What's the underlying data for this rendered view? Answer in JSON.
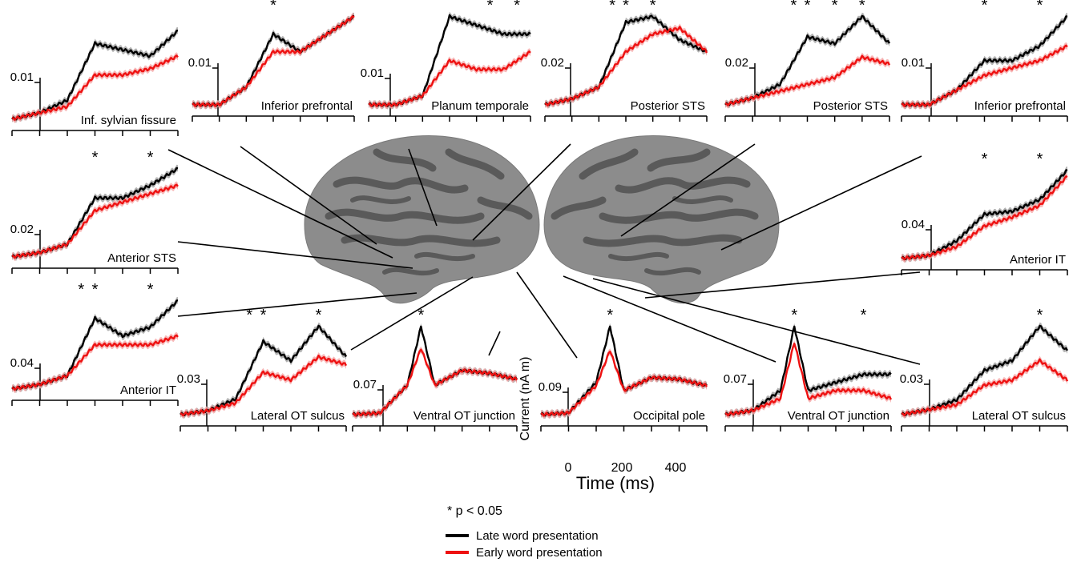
{
  "figure": {
    "axis_label": "Current (nA m)",
    "time_label": "Time (ms)",
    "time_ticks": [
      "0",
      "200",
      "400"
    ],
    "significance_note": "* p < 0.05",
    "legend": [
      {
        "label": "Late word presentation",
        "color": "#000000"
      },
      {
        "label": "Early word presentation",
        "color": "#ee1111"
      }
    ],
    "colors": {
      "late": "#000000",
      "early": "#ee1111",
      "late_band": "#9a9a9a",
      "early_band": "#f4a0a0",
      "brain_light": "#8c8c8c",
      "brain_dark": "#5a5a5a"
    }
  },
  "chart_data": [
    {
      "type": "line",
      "title": "Inf. sylvian fissure",
      "hemisphere": "left",
      "ytick": "0.01",
      "sig_times": [],
      "x": [
        -100,
        0,
        100,
        200,
        300,
        400,
        500
      ],
      "series": [
        {
          "name": "Late word presentation",
          "values": [
            0.004,
            0.005,
            0.007,
            0.016,
            0.015,
            0.014,
            0.018
          ]
        },
        {
          "name": "Early word presentation",
          "values": [
            0.004,
            0.005,
            0.006,
            0.011,
            0.011,
            0.012,
            0.014
          ]
        }
      ]
    },
    {
      "type": "line",
      "title": "Inferior prefrontal",
      "hemisphere": "left",
      "ytick": "0.01",
      "sig_times": [
        200
      ],
      "x": [
        -100,
        0,
        100,
        200,
        300,
        400,
        500
      ],
      "series": [
        {
          "name": "Late word presentation",
          "values": [
            0.004,
            0.004,
            0.005,
            0.008,
            0.007,
            0.008,
            0.009
          ]
        },
        {
          "name": "Early word presentation",
          "values": [
            0.004,
            0.004,
            0.005,
            0.007,
            0.007,
            0.008,
            0.009
          ]
        }
      ]
    },
    {
      "type": "line",
      "title": "Planum temporale",
      "hemisphere": "left",
      "ytick": "0.01",
      "sig_times": [
        350,
        450
      ],
      "x": [
        -100,
        0,
        100,
        200,
        300,
        400,
        500
      ],
      "series": [
        {
          "name": "Late word presentation",
          "values": [
            0.004,
            0.004,
            0.005,
            0.014,
            0.013,
            0.012,
            0.012
          ]
        },
        {
          "name": "Early word presentation",
          "values": [
            0.004,
            0.004,
            0.005,
            0.009,
            0.008,
            0.008,
            0.01
          ]
        }
      ]
    },
    {
      "type": "line",
      "title": "Posterior STS",
      "hemisphere": "left",
      "ytick": "0.02",
      "sig_times": [
        150,
        200,
        300
      ],
      "x": [
        -100,
        0,
        100,
        200,
        300,
        400,
        500
      ],
      "series": [
        {
          "name": "Late word presentation",
          "values": [
            0.01,
            0.011,
            0.013,
            0.024,
            0.025,
            0.021,
            0.019
          ]
        },
        {
          "name": "Early word presentation",
          "values": [
            0.01,
            0.011,
            0.013,
            0.019,
            0.022,
            0.023,
            0.019
          ]
        }
      ]
    },
    {
      "type": "line",
      "title": "Posterior STS",
      "hemisphere": "right",
      "ytick": "0.02",
      "sig_times": [
        150,
        200,
        300,
        400
      ],
      "x": [
        -100,
        0,
        100,
        200,
        300,
        400,
        500
      ],
      "series": [
        {
          "name": "Late word presentation",
          "values": [
            0.01,
            0.011,
            0.013,
            0.02,
            0.019,
            0.023,
            0.019
          ]
        },
        {
          "name": "Early word presentation",
          "values": [
            0.01,
            0.011,
            0.012,
            0.013,
            0.014,
            0.017,
            0.016
          ]
        }
      ]
    },
    {
      "type": "line",
      "title": "Inferior prefrontal",
      "hemisphere": "right",
      "ytick": "0.01",
      "sig_times": [
        200,
        400
      ],
      "x": [
        -100,
        0,
        100,
        200,
        300,
        400,
        500
      ],
      "series": [
        {
          "name": "Late word presentation",
          "values": [
            0.004,
            0.004,
            0.006,
            0.01,
            0.01,
            0.012,
            0.016
          ]
        },
        {
          "name": "Early word presentation",
          "values": [
            0.004,
            0.004,
            0.006,
            0.008,
            0.009,
            0.01,
            0.012
          ]
        }
      ]
    },
    {
      "type": "line",
      "title": "Anterior STS",
      "hemisphere": "left",
      "ytick": "0.02",
      "sig_times": [
        200,
        400
      ],
      "x": [
        -100,
        0,
        100,
        200,
        300,
        400,
        500
      ],
      "series": [
        {
          "name": "Late word presentation",
          "values": [
            0.019,
            0.02,
            0.022,
            0.033,
            0.033,
            0.036,
            0.04
          ]
        },
        {
          "name": "Early word presentation",
          "values": [
            0.019,
            0.02,
            0.022,
            0.03,
            0.032,
            0.034,
            0.036
          ]
        }
      ]
    },
    {
      "type": "line",
      "title": "Anterior IT",
      "hemisphere": "right",
      "ytick": "0.04",
      "sig_times": [
        200,
        400
      ],
      "x": [
        -100,
        0,
        100,
        200,
        300,
        400,
        500
      ],
      "series": [
        {
          "name": "Late word presentation",
          "values": [
            0.034,
            0.035,
            0.04,
            0.049,
            0.05,
            0.054,
            0.064
          ]
        },
        {
          "name": "Early word presentation",
          "values": [
            0.034,
            0.035,
            0.038,
            0.045,
            0.048,
            0.052,
            0.062
          ]
        }
      ]
    },
    {
      "type": "line",
      "title": "Anterior IT",
      "hemisphere": "left",
      "ytick": "0.04",
      "sig_times": [
        150,
        200,
        400
      ],
      "x": [
        -100,
        0,
        100,
        200,
        300,
        400,
        500
      ],
      "series": [
        {
          "name": "Late word presentation",
          "values": [
            0.038,
            0.039,
            0.041,
            0.054,
            0.05,
            0.052,
            0.058
          ]
        },
        {
          "name": "Early word presentation",
          "values": [
            0.038,
            0.039,
            0.041,
            0.048,
            0.048,
            0.048,
            0.05
          ]
        }
      ]
    },
    {
      "type": "line",
      "title": "Lateral OT sulcus",
      "hemisphere": "left",
      "ytick": "0.03",
      "sig_times": [
        150,
        200,
        400
      ],
      "x": [
        -100,
        0,
        100,
        200,
        300,
        400,
        500
      ],
      "series": [
        {
          "name": "Late word presentation",
          "values": [
            0.019,
            0.02,
            0.023,
            0.038,
            0.033,
            0.042,
            0.034
          ]
        },
        {
          "name": "Early word presentation",
          "values": [
            0.019,
            0.02,
            0.022,
            0.03,
            0.028,
            0.034,
            0.032
          ]
        }
      ]
    },
    {
      "type": "line",
      "title": "Ventral OT junction",
      "hemisphere": "left",
      "ytick": "0.07",
      "sig_times": [
        150
      ],
      "x": [
        -100,
        0,
        100,
        150,
        200,
        300,
        400,
        500
      ],
      "series": [
        {
          "name": "Late word presentation",
          "values": [
            0.04,
            0.041,
            0.06,
            0.1,
            0.06,
            0.07,
            0.068,
            0.064
          ]
        },
        {
          "name": "Early word presentation",
          "values": [
            0.04,
            0.041,
            0.06,
            0.085,
            0.06,
            0.07,
            0.068,
            0.064
          ]
        }
      ]
    },
    {
      "type": "line",
      "title": "Occipital pole",
      "hemisphere": "left",
      "ytick": "0.09",
      "sig_times": [
        150
      ],
      "x": [
        -100,
        0,
        100,
        150,
        200,
        300,
        400,
        500
      ],
      "series": [
        {
          "name": "Late word presentation",
          "values": [
            0.07,
            0.071,
            0.09,
            0.125,
            0.085,
            0.093,
            0.092,
            0.088
          ]
        },
        {
          "name": "Early word presentation",
          "values": [
            0.07,
            0.071,
            0.088,
            0.11,
            0.085,
            0.093,
            0.092,
            0.088
          ]
        }
      ]
    },
    {
      "type": "line",
      "title": "Ventral OT junction",
      "hemisphere": "right",
      "ytick": "0.07",
      "sig_times": [
        150,
        400
      ],
      "x": [
        -100,
        0,
        100,
        150,
        200,
        300,
        400,
        500
      ],
      "series": [
        {
          "name": "Late word presentation",
          "values": [
            0.046,
            0.047,
            0.052,
            0.068,
            0.052,
            0.054,
            0.056,
            0.056
          ]
        },
        {
          "name": "Early word presentation",
          "values": [
            0.046,
            0.047,
            0.05,
            0.064,
            0.05,
            0.052,
            0.052,
            0.05
          ]
        }
      ]
    },
    {
      "type": "line",
      "title": "Lateral OT sulcus",
      "hemisphere": "right",
      "ytick": "0.03",
      "sig_times": [
        400
      ],
      "x": [
        -100,
        0,
        100,
        200,
        300,
        400,
        500
      ],
      "series": [
        {
          "name": "Late word presentation",
          "values": [
            0.019,
            0.02,
            0.022,
            0.028,
            0.03,
            0.037,
            0.032
          ]
        },
        {
          "name": "Early word presentation",
          "values": [
            0.019,
            0.02,
            0.021,
            0.025,
            0.026,
            0.03,
            0.026
          ]
        }
      ]
    }
  ]
}
